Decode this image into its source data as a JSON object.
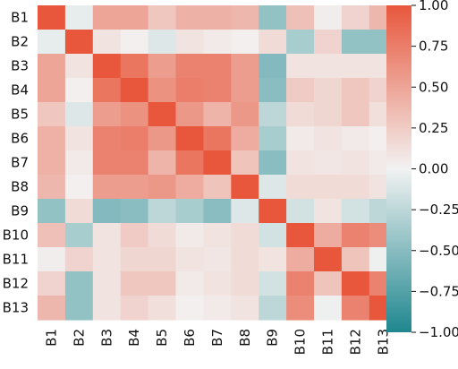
{
  "chart_data": {
    "type": "heatmap",
    "title": "",
    "xlabel": "",
    "ylabel": "",
    "rows": [
      "B1",
      "B2",
      "B3",
      "B4",
      "B5",
      "B6",
      "B7",
      "B8",
      "B9",
      "B10",
      "B11",
      "B12",
      "B13"
    ],
    "cols": [
      "B1",
      "B2",
      "B3",
      "B4",
      "B5",
      "B6",
      "B7",
      "B8",
      "B9",
      "B10",
      "B11",
      "B12",
      "B13"
    ],
    "values": [
      [
        1.0,
        -0.05,
        0.5,
        0.5,
        0.28,
        0.42,
        0.42,
        0.38,
        -0.45,
        0.32,
        0.03,
        0.2,
        0.38
      ],
      [
        -0.05,
        1.0,
        0.1,
        0.02,
        -0.1,
        0.1,
        0.05,
        0.02,
        0.15,
        -0.35,
        0.2,
        -0.45,
        -0.45
      ],
      [
        0.5,
        0.1,
        1.0,
        0.8,
        0.55,
        0.72,
        0.72,
        0.55,
        -0.52,
        0.1,
        0.1,
        0.1,
        0.1
      ],
      [
        0.5,
        0.02,
        0.8,
        1.0,
        0.62,
        0.75,
        0.72,
        0.55,
        -0.5,
        0.25,
        0.18,
        0.28,
        0.2
      ],
      [
        0.28,
        -0.1,
        0.55,
        0.62,
        1.0,
        0.58,
        0.4,
        0.58,
        -0.25,
        0.15,
        0.18,
        0.28,
        0.12
      ],
      [
        0.42,
        0.1,
        0.72,
        0.75,
        0.58,
        1.0,
        0.8,
        0.45,
        -0.35,
        0.05,
        0.1,
        0.05,
        0.02
      ],
      [
        0.42,
        0.05,
        0.72,
        0.72,
        0.4,
        0.8,
        1.0,
        0.3,
        -0.5,
        0.1,
        0.08,
        0.1,
        0.05
      ],
      [
        0.38,
        0.02,
        0.55,
        0.55,
        0.58,
        0.45,
        0.3,
        1.0,
        -0.1,
        0.15,
        0.15,
        0.15,
        0.1
      ],
      [
        -0.45,
        0.15,
        -0.52,
        -0.5,
        -0.25,
        -0.35,
        -0.5,
        -0.1,
        1.0,
        -0.15,
        0.1,
        -0.15,
        -0.25
      ],
      [
        0.32,
        -0.35,
        0.1,
        0.25,
        0.15,
        0.05,
        0.1,
        0.15,
        -0.15,
        1.0,
        0.45,
        0.72,
        0.65
      ],
      [
        0.03,
        0.2,
        0.1,
        0.18,
        0.18,
        0.1,
        0.08,
        0.15,
        0.1,
        0.45,
        1.0,
        0.3,
        -0.02
      ],
      [
        0.2,
        -0.45,
        0.1,
        0.28,
        0.28,
        0.05,
        0.1,
        0.15,
        -0.15,
        0.72,
        0.3,
        1.0,
        0.72
      ],
      [
        0.38,
        -0.45,
        0.1,
        0.2,
        0.12,
        0.02,
        0.05,
        0.1,
        -0.25,
        0.65,
        -0.02,
        0.72,
        1.0
      ]
    ],
    "vmin": -1.0,
    "vmax": 1.0,
    "colorbar": {
      "ticks": [
        1.0,
        0.75,
        0.5,
        0.25,
        0.0,
        -0.25,
        -0.5,
        -0.75,
        -1.0
      ],
      "tick_labels": [
        "1.00",
        "0.75",
        "0.50",
        "0.25",
        "0.00",
        "−0.25",
        "−0.50",
        "−0.75",
        "−1.00"
      ]
    },
    "colors": {
      "low": "#1f878f",
      "mid": "#f2f2f2",
      "high": "#e8573c"
    },
    "grid": false,
    "legend": "right"
  }
}
